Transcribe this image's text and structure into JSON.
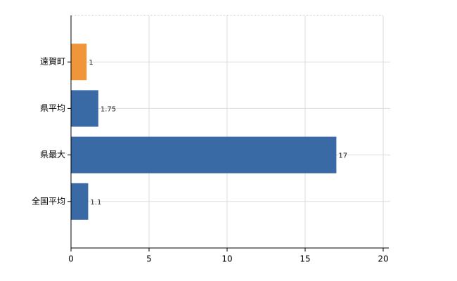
{
  "chart_data": {
    "type": "barh",
    "categories": [
      "遠賀町",
      "県平均",
      "県最大",
      "全国平均"
    ],
    "values": [
      1,
      1.75,
      17,
      1.1
    ],
    "colors": [
      "#f0963a",
      "#3a6aa6",
      "#3a6aa6",
      "#3a6aa6"
    ],
    "xlim": [
      0,
      20
    ],
    "xticks": [
      0,
      5,
      10,
      15,
      20
    ],
    "grid": true
  }
}
